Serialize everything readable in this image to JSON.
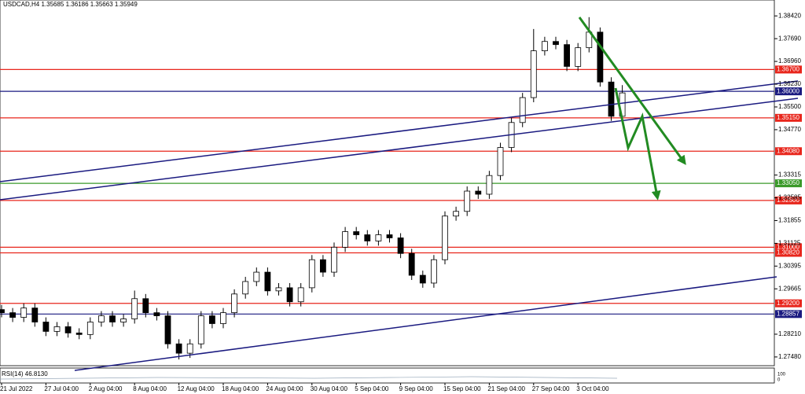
{
  "chart_data": {
    "type": "candlestick",
    "title": "USDCAD,H4 1.35685 1.36186 1.35663 1.35949",
    "rsi_label": "RSI(14) 46.8130",
    "rsi_axis": [
      100,
      0
    ],
    "categories": [
      "21 Jul 2022",
      null,
      null,
      null,
      "27 Jul 04:00",
      null,
      null,
      null,
      "2 Aug 04:00",
      null,
      null,
      null,
      "8 Aug 04:00",
      null,
      null,
      null,
      "12 Aug 04:00",
      null,
      null,
      null,
      "18 Aug 04:00",
      null,
      null,
      null,
      "24 Aug 04:00",
      null,
      null,
      null,
      "30 Aug 04:00",
      null,
      null,
      null,
      "5 Sep 04:00",
      null,
      null,
      null,
      "9 Sep 04:00",
      null,
      null,
      null,
      "15 Sep 04:00",
      null,
      null,
      null,
      "21 Sep 04:00",
      null,
      null,
      null,
      "27 Sep 04:00",
      null,
      null,
      null,
      "3 Oct 04:00",
      null,
      null,
      null,
      null
    ],
    "open": [
      1.29,
      1.289,
      1.2875,
      1.2905,
      1.286,
      1.283,
      1.2845,
      1.2825,
      1.282,
      1.286,
      1.288,
      1.286,
      1.287,
      1.2935,
      1.289,
      1.288,
      1.279,
      1.276,
      1.279,
      1.288,
      1.2855,
      1.289,
      1.295,
      1.299,
      1.302,
      1.296,
      1.297,
      1.2925,
      1.297,
      1.306,
      1.302,
      1.31,
      1.315,
      1.314,
      1.312,
      1.314,
      1.313,
      1.308,
      1.301,
      1.2985,
      1.306,
      1.32,
      1.3215,
      1.328,
      1.327,
      1.333,
      1.342,
      1.35,
      1.358,
      1.373,
      1.376,
      1.375,
      1.368,
      1.374,
      1.379,
      1.363,
      1.352
    ],
    "high": [
      1.2915,
      1.2905,
      1.292,
      1.292,
      1.2875,
      1.286,
      1.286,
      1.284,
      1.2875,
      1.2895,
      1.2895,
      1.2885,
      1.2961,
      1.295,
      1.2905,
      1.2895,
      1.2805,
      1.2805,
      1.2895,
      1.2895,
      1.2905,
      1.2965,
      1.3005,
      1.3035,
      1.3035,
      1.2985,
      1.2985,
      1.2985,
      1.3075,
      1.3075,
      1.3115,
      1.3165,
      1.3165,
      1.3155,
      1.3155,
      1.3155,
      1.3145,
      1.3095,
      1.3025,
      1.3075,
      1.3215,
      1.323,
      1.3295,
      1.3295,
      1.3345,
      1.3435,
      1.3515,
      1.3595,
      1.38,
      1.3775,
      1.3775,
      1.3765,
      1.3755,
      1.3838,
      1.3805,
      1.3645,
      1.362
    ],
    "low": [
      1.2875,
      1.286,
      1.286,
      1.2845,
      1.2815,
      1.2815,
      1.281,
      1.2805,
      1.2805,
      1.2845,
      1.2845,
      1.2845,
      1.2855,
      1.2875,
      1.2865,
      1.2775,
      1.274,
      1.2745,
      1.2775,
      1.284,
      1.284,
      1.2875,
      1.2935,
      1.2975,
      1.2945,
      1.2945,
      1.291,
      1.291,
      1.2955,
      1.3005,
      1.3005,
      1.3085,
      1.3125,
      1.3105,
      1.3105,
      1.3115,
      1.3065,
      1.2995,
      1.297,
      1.297,
      1.3045,
      1.3185,
      1.32,
      1.3255,
      1.3255,
      1.3315,
      1.3405,
      1.3485,
      1.3565,
      1.3715,
      1.3735,
      1.3665,
      1.3665,
      1.3725,
      1.3615,
      1.3505,
      1.35
    ],
    "close": [
      1.289,
      1.2875,
      1.2905,
      1.286,
      1.283,
      1.2845,
      1.2825,
      1.282,
      1.286,
      1.288,
      1.286,
      1.287,
      1.2935,
      1.289,
      1.288,
      1.279,
      1.276,
      1.279,
      1.288,
      1.2855,
      1.289,
      1.295,
      1.299,
      1.302,
      1.296,
      1.297,
      1.2925,
      1.297,
      1.306,
      1.302,
      1.31,
      1.315,
      1.314,
      1.312,
      1.314,
      1.313,
      1.308,
      1.301,
      1.2985,
      1.306,
      1.32,
      1.3215,
      1.328,
      1.327,
      1.333,
      1.342,
      1.35,
      1.358,
      1.373,
      1.376,
      1.375,
      1.368,
      1.374,
      1.379,
      1.363,
      1.352,
      1.3595
    ],
    "ylim": [
      1.272,
      1.3893
    ],
    "yticks": [
      {
        "value": 1.3842,
        "label": "1.38420"
      },
      {
        "value": 1.3769,
        "label": "1.37690"
      },
      {
        "value": 1.3696,
        "label": "1.36960"
      },
      {
        "value": 1.3623,
        "label": "1.36230"
      },
      {
        "value": 1.355,
        "label": "1.35500"
      },
      {
        "value": 1.3477,
        "label": "1.34770"
      },
      {
        "value": 1.33315,
        "label": "1.33315"
      },
      {
        "value": 1.32585,
        "label": "1.32585"
      },
      {
        "value": 1.31855,
        "label": "1.31855"
      },
      {
        "value": 1.31125,
        "label": "1.31125"
      },
      {
        "value": 1.30395,
        "label": "1.30395"
      },
      {
        "value": 1.29665,
        "label": "1.29665"
      },
      {
        "value": 1.2821,
        "label": "1.28210"
      },
      {
        "value": 1.2748,
        "label": "1.27480"
      }
    ],
    "levels": [
      {
        "value": 1.367,
        "label": "1.36700",
        "color": "#e8261c"
      },
      {
        "value": 1.36,
        "label": "1.36000",
        "color": "#1a1a80"
      },
      {
        "value": 1.3515,
        "label": "1.35150",
        "color": "#e8261c"
      },
      {
        "value": 1.3408,
        "label": "1.34080",
        "color": "#e8261c"
      },
      {
        "value": 1.3305,
        "label": "1.33050",
        "color": "#3a9a2a"
      },
      {
        "value": 1.325,
        "label": "1.32500",
        "color": "#e8261c"
      },
      {
        "value": 1.31,
        "label": "1.31000",
        "color": "#e8261c"
      },
      {
        "value": 1.3082,
        "label": "1.30820",
        "color": "#e8261c"
      },
      {
        "value": 1.292,
        "label": "1.29200",
        "color": "#e8261c"
      },
      {
        "value": 1.28857,
        "label": "1.28857",
        "color": "#1a1a80"
      }
    ]
  }
}
